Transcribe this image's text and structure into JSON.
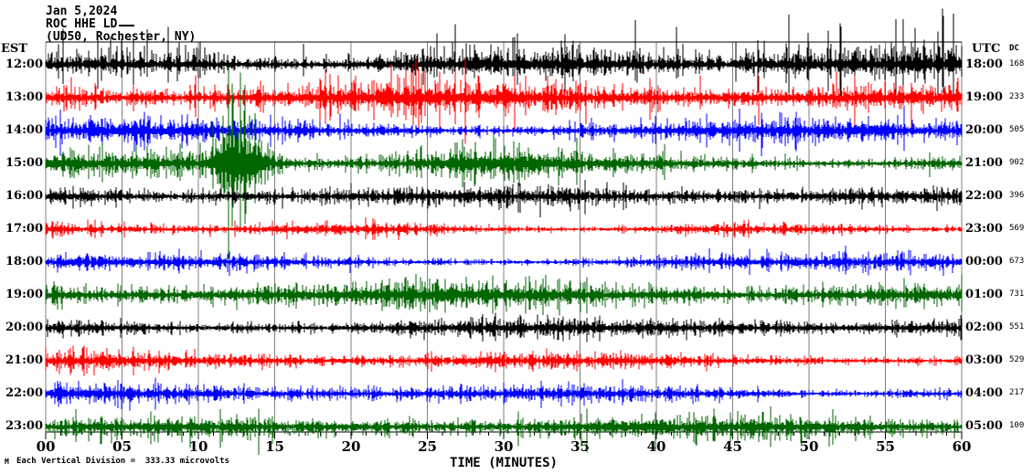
{
  "header": {
    "date": "Jan 5,2024",
    "station": "ROC HHE LD",
    "location": "(UD50, Rochester, NY)",
    "left_tz": "EST",
    "right_tz": "UTC",
    "dc_header": "DC"
  },
  "footer": {
    "xlabel": "TIME (MINUTES)",
    "scale_note": "Each Vertical Division =  333.33 microvolts",
    "corner_mark": "M"
  },
  "chart_data": {
    "type": "seismogram-helicorder",
    "title": "ROC HHE LD (UD50, Rochester, NY) Jan 5,2024",
    "xlabel": "TIME (MINUTES)",
    "x_unit": "minutes",
    "x_range": [
      0,
      60
    ],
    "x_major_ticks": [
      "00",
      "05",
      "10",
      "15",
      "20",
      "25",
      "30",
      "35",
      "40",
      "45",
      "50",
      "55",
      "60"
    ],
    "x_minor_tick_interval_minutes": 1,
    "vertical_division_microvolts": 333.33,
    "grid": true,
    "grid_color": "#808080",
    "axis_color": "#000000",
    "background_color": "#ffffff",
    "trace_color_cycle": [
      "#000000",
      "#ff0000",
      "#0000ff",
      "#006600"
    ],
    "rows": [
      {
        "est": "12:00",
        "utc": "18:00",
        "dc": "168",
        "color": "#000000",
        "amp": {
          "base": 0.5,
          "spike": 1.9,
          "p_spike": 0.05,
          "up_bias": 0.62,
          "events": []
        }
      },
      {
        "est": "13:00",
        "utc": "19:00",
        "dc": "233",
        "color": "#ff0000",
        "amp": {
          "base": 0.45,
          "spike": 1.6,
          "p_spike": 0.03,
          "up_bias": 0.52,
          "events": [
            [
              24,
              3,
              0.18
            ]
          ]
        }
      },
      {
        "est": "14:00",
        "utc": "20:00",
        "dc": "505",
        "color": "#0000ff",
        "amp": {
          "base": 0.42,
          "spike": 1.2,
          "p_spike": 0.02,
          "up_bias": 0.5,
          "events": [
            [
              4,
              6,
              0.15
            ]
          ]
        }
      },
      {
        "est": "15:00",
        "utc": "21:00",
        "dc": "902",
        "color": "#006600",
        "amp": {
          "base": 0.4,
          "spike": 1.1,
          "p_spike": 0.02,
          "up_bias": 0.5,
          "events": [
            [
              12.7,
              1.4,
              1.7
            ],
            [
              29,
              5,
              0.35
            ]
          ]
        }
      },
      {
        "est": "16:00",
        "utc": "22:00",
        "dc": "396",
        "color": "#000000",
        "amp": {
          "base": 0.3,
          "spike": 0.8,
          "p_spike": 0.02,
          "up_bias": 0.5,
          "events": []
        }
      },
      {
        "est": "17:00",
        "utc": "23:00",
        "dc": "569",
        "color": "#ff0000",
        "amp": {
          "base": 0.25,
          "spike": 0.65,
          "p_spike": 0.02,
          "up_bias": 0.5,
          "events": []
        }
      },
      {
        "est": "18:00",
        "utc": "00:00",
        "dc": "673",
        "color": "#0000ff",
        "amp": {
          "base": 0.3,
          "spike": 0.7,
          "p_spike": 0.02,
          "up_bias": 0.5,
          "events": []
        }
      },
      {
        "est": "19:00",
        "utc": "01:00",
        "dc": "731",
        "color": "#006600",
        "amp": {
          "base": 0.43,
          "spike": 0.85,
          "p_spike": 0.02,
          "up_bias": 0.5,
          "events": []
        }
      },
      {
        "est": "20:00",
        "utc": "02:00",
        "dc": "551",
        "color": "#000000",
        "amp": {
          "base": 0.3,
          "spike": 0.7,
          "p_spike": 0.02,
          "up_bias": 0.5,
          "events": []
        }
      },
      {
        "est": "21:00",
        "utc": "03:00",
        "dc": "529",
        "color": "#ff0000",
        "amp": {
          "base": 0.3,
          "spike": 0.7,
          "p_spike": 0.02,
          "up_bias": 0.5,
          "events": []
        }
      },
      {
        "est": "22:00",
        "utc": "04:00",
        "dc": "217",
        "color": "#0000ff",
        "amp": {
          "base": 0.36,
          "spike": 0.8,
          "p_spike": 0.02,
          "up_bias": 0.5,
          "events": []
        }
      },
      {
        "est": "23:00",
        "utc": "05:00",
        "dc": "100",
        "color": "#006600",
        "amp": {
          "base": 0.34,
          "spike": 1.0,
          "p_spike": 0.03,
          "up_bias": 0.42,
          "events": []
        }
      }
    ]
  }
}
